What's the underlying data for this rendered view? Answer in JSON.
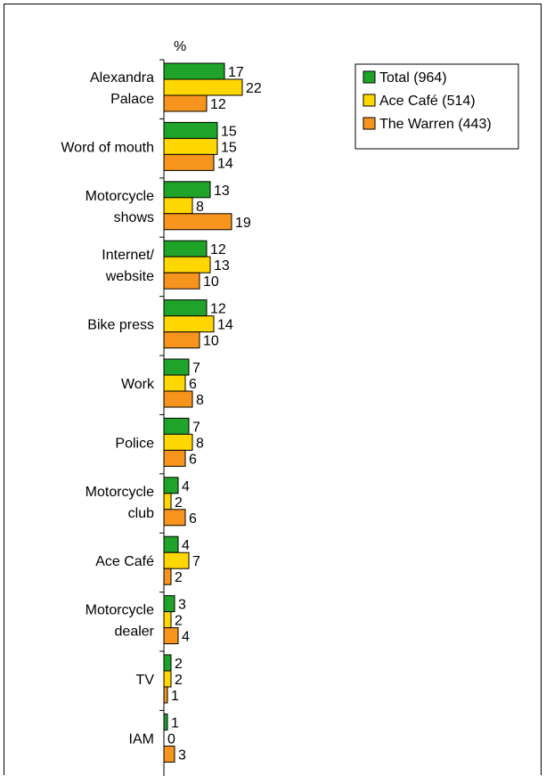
{
  "chart_data": {
    "type": "bar",
    "orientation": "horizontal",
    "unit_label": "%",
    "categories": [
      [
        "Alexandra",
        "Palace"
      ],
      [
        "Word of mouth"
      ],
      [
        "Motorcycle",
        "shows"
      ],
      [
        "Internet/",
        "website"
      ],
      [
        "Bike press"
      ],
      [
        "Work"
      ],
      [
        "Police"
      ],
      [
        "Motorcycle",
        "club"
      ],
      [
        "Ace Café"
      ],
      [
        "Motorcycle",
        "dealer"
      ],
      [
        "TV"
      ],
      [
        "IAM"
      ]
    ],
    "series": [
      {
        "name": "Total (964)",
        "color": "#1fa329",
        "values": [
          17,
          15,
          13,
          12,
          12,
          7,
          7,
          4,
          4,
          3,
          2,
          1
        ]
      },
      {
        "name": "Ace Café (514)",
        "color": "#ffd700",
        "values": [
          22,
          15,
          8,
          13,
          14,
          6,
          8,
          2,
          7,
          2,
          2,
          0
        ]
      },
      {
        "name": "The Warren (443)",
        "color": "#f7941d",
        "values": [
          12,
          14,
          19,
          10,
          10,
          8,
          6,
          6,
          2,
          4,
          1,
          3
        ]
      }
    ],
    "legend_position": "top-right",
    "grid": false
  }
}
